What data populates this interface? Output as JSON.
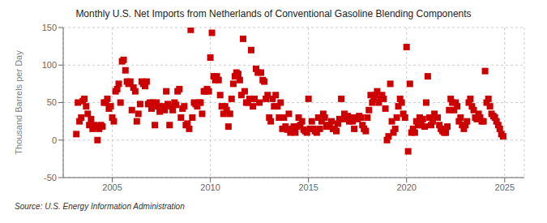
{
  "chart_data": {
    "type": "scatter",
    "title": "Monthly U.S. Net Imports from Netherlands of Conventional Gasoline Blending Components",
    "ylabel": "Thousand Barrels per Day",
    "annotations": [
      "Source: U.S. Energy Information Administration"
    ],
    "color": "#cc0000",
    "marker": "square",
    "grid": true,
    "xlim": [
      2002.5,
      2026.0
    ],
    "xticks": [
      2005,
      2010,
      2015,
      2020,
      2025
    ],
    "ylim": [
      -50,
      150
    ],
    "yticks": [
      -50,
      0,
      50,
      100,
      150
    ],
    "x": [
      2003.17,
      2003.25,
      2003.33,
      2003.42,
      2003.5,
      2003.58,
      2003.67,
      2003.75,
      2003.83,
      2003.92,
      2004.0,
      2004.08,
      2004.17,
      2004.25,
      2004.33,
      2004.42,
      2004.5,
      2004.58,
      2004.67,
      2004.75,
      2004.83,
      2004.92,
      2005.0,
      2005.08,
      2005.17,
      2005.25,
      2005.33,
      2005.42,
      2005.5,
      2005.58,
      2005.67,
      2005.75,
      2005.83,
      2005.92,
      2006.0,
      2006.08,
      2006.17,
      2006.25,
      2006.33,
      2006.42,
      2006.5,
      2006.58,
      2006.67,
      2006.75,
      2006.83,
      2006.92,
      2007.0,
      2007.08,
      2007.17,
      2007.25,
      2007.33,
      2007.42,
      2007.5,
      2007.58,
      2007.67,
      2007.75,
      2007.83,
      2007.92,
      2008.0,
      2008.08,
      2008.17,
      2008.25,
      2008.33,
      2008.42,
      2008.5,
      2008.58,
      2008.67,
      2008.75,
      2008.83,
      2008.92,
      2009.0,
      2009.08,
      2009.17,
      2009.25,
      2009.33,
      2009.42,
      2009.5,
      2009.58,
      2009.67,
      2009.75,
      2009.83,
      2009.92,
      2010.0,
      2010.08,
      2010.17,
      2010.25,
      2010.33,
      2010.42,
      2010.5,
      2010.58,
      2010.67,
      2010.75,
      2010.83,
      2010.92,
      2011.0,
      2011.08,
      2011.17,
      2011.25,
      2011.33,
      2011.42,
      2011.5,
      2011.58,
      2011.67,
      2011.75,
      2011.83,
      2011.92,
      2012.0,
      2012.08,
      2012.17,
      2012.25,
      2012.33,
      2012.42,
      2012.5,
      2012.58,
      2012.67,
      2012.75,
      2012.83,
      2012.92,
      2013.0,
      2013.08,
      2013.17,
      2013.25,
      2013.33,
      2013.42,
      2013.5,
      2013.58,
      2013.67,
      2013.75,
      2013.83,
      2013.92,
      2014.0,
      2014.08,
      2014.17,
      2014.25,
      2014.33,
      2014.42,
      2014.5,
      2014.58,
      2014.67,
      2014.75,
      2014.83,
      2014.92,
      2015.0,
      2015.08,
      2015.17,
      2015.25,
      2015.33,
      2015.42,
      2015.5,
      2015.58,
      2015.67,
      2015.75,
      2015.83,
      2015.92,
      2016.0,
      2016.08,
      2016.17,
      2016.25,
      2016.33,
      2016.42,
      2016.5,
      2016.58,
      2016.67,
      2016.75,
      2016.83,
      2016.92,
      2017.0,
      2017.08,
      2017.17,
      2017.25,
      2017.33,
      2017.42,
      2017.5,
      2017.58,
      2017.67,
      2017.75,
      2017.83,
      2017.92,
      2018.0,
      2018.08,
      2018.17,
      2018.25,
      2018.33,
      2018.42,
      2018.5,
      2018.58,
      2018.67,
      2018.75,
      2018.83,
      2018.92,
      2019.0,
      2019.08,
      2019.17,
      2019.25,
      2019.33,
      2019.42,
      2019.5,
      2019.58,
      2019.67,
      2019.75,
      2019.83,
      2019.92,
      2020.0,
      2020.08,
      2020.17,
      2020.25,
      2020.33,
      2020.42,
      2020.5,
      2020.58,
      2020.67,
      2020.75,
      2020.83,
      2020.92,
      2021.0,
      2021.08,
      2021.17,
      2021.25,
      2021.33,
      2021.42,
      2021.5,
      2021.58,
      2021.67,
      2021.75,
      2021.83,
      2021.92,
      2022.0,
      2022.08,
      2022.17,
      2022.25,
      2022.33,
      2022.42,
      2022.5,
      2022.58,
      2022.67,
      2022.75,
      2022.83,
      2022.92,
      2023.0,
      2023.08,
      2023.17,
      2023.25,
      2023.33,
      2023.42,
      2023.5,
      2023.58,
      2023.67,
      2023.75,
      2023.83,
      2023.92,
      2024.0,
      2024.08,
      2024.17,
      2024.25,
      2024.33,
      2024.42,
      2024.5,
      2024.58,
      2024.67,
      2024.75,
      2024.83,
      2024.92
    ],
    "values": [
      8,
      50,
      25,
      30,
      52,
      55,
      45,
      35,
      20,
      28,
      15,
      20,
      18,
      0,
      15,
      20,
      18,
      50,
      50,
      55,
      42,
      45,
      30,
      25,
      65,
      68,
      75,
      50,
      105,
      107,
      93,
      78,
      75,
      78,
      40,
      70,
      65,
      25,
      35,
      48,
      78,
      75,
      72,
      78,
      48,
      50,
      42,
      50,
      20,
      50,
      45,
      38,
      45,
      42,
      40,
      65,
      48,
      20,
      45,
      40,
      50,
      47,
      65,
      68,
      30,
      42,
      45,
      20,
      22,
      15,
      147,
      30,
      50,
      48,
      45,
      50,
      50,
      35,
      65,
      65,
      68,
      65,
      110,
      143,
      85,
      80,
      85,
      80,
      60,
      45,
      35,
      45,
      40,
      18,
      35,
      55,
      75,
      85,
      90,
      88,
      80,
      60,
      135,
      65,
      50,
      50,
      55,
      120,
      45,
      55,
      95,
      90,
      50,
      90,
      80,
      78,
      55,
      60,
      30,
      25,
      55,
      45,
      60,
      45,
      30,
      50,
      15,
      30,
      18,
      14,
      35,
      10,
      15,
      18,
      10,
      18,
      30,
      20,
      25,
      14,
      12,
      10,
      55,
      15,
      25,
      15,
      12,
      10,
      30,
      15,
      25,
      35,
      30,
      18,
      20,
      20,
      25,
      15,
      15,
      12,
      22,
      28,
      55,
      28,
      35,
      30,
      32,
      25,
      30,
      25,
      15,
      30,
      28,
      32,
      30,
      20,
      15,
      12,
      30,
      40,
      60,
      50,
      55,
      60,
      65,
      50,
      55,
      60,
      55,
      42,
      0,
      5,
      75,
      25,
      10,
      15,
      30,
      45,
      55,
      50,
      35,
      30,
      124,
      -15,
      75,
      10,
      15,
      10,
      25,
      20,
      30,
      20,
      28,
      18,
      50,
      85,
      30,
      20,
      25,
      35,
      30,
      30,
      20,
      15,
      12,
      10,
      10,
      18,
      40,
      55,
      50,
      40,
      50,
      45,
      25,
      30,
      20,
      15,
      20,
      25,
      50,
      55,
      45,
      40,
      30,
      28,
      35,
      30,
      25,
      25,
      92,
      50,
      55,
      45,
      35,
      32,
      30,
      25,
      20,
      15,
      8,
      5
    ]
  }
}
